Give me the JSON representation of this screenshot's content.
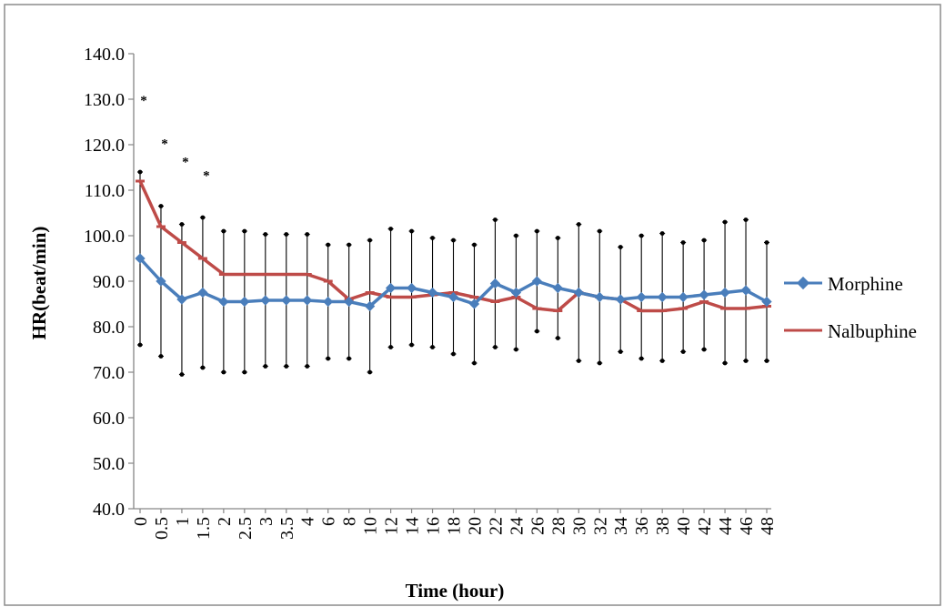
{
  "chart_data": {
    "type": "line",
    "title": "",
    "xlabel": "Time (hour)",
    "ylabel": "HR(beat/min)",
    "ylim": [
      40.0,
      140.0
    ],
    "ytick_step": 10.0,
    "ytick_labels": [
      "40.0",
      "50.0",
      "60.0",
      "70.0",
      "80.0",
      "90.0",
      "100.0",
      "110.0",
      "120.0",
      "130.0",
      "140.0"
    ],
    "categories": [
      "0",
      "0.5",
      "1",
      "1.5",
      "2",
      "2.5",
      "3",
      "3.5",
      "4",
      "6",
      "8",
      "10",
      "12",
      "14",
      "16",
      "18",
      "20",
      "22",
      "24",
      "26",
      "28",
      "30",
      "32",
      "34",
      "36",
      "38",
      "40",
      "42",
      "44",
      "46",
      "48"
    ],
    "grid": false,
    "legend_position": "right",
    "series": [
      {
        "name": "Morphine",
        "color": "#4a7ebb",
        "marker": "diamond",
        "values": [
          95.0,
          90.0,
          86.0,
          87.5,
          85.5,
          85.5,
          85.8,
          85.8,
          85.8,
          85.5,
          85.5,
          84.5,
          88.5,
          88.5,
          87.5,
          86.5,
          85.0,
          89.5,
          87.5,
          90.0,
          88.5,
          87.5,
          86.5,
          86.0,
          86.5,
          86.5,
          86.5,
          87.0,
          87.5,
          88.0,
          85.5
        ],
        "error": [
          19.0,
          16.5,
          16.5,
          16.5,
          15.5,
          15.5,
          14.5,
          14.5,
          14.5,
          12.5,
          12.5,
          14.5,
          13.0,
          12.5,
          12.0,
          12.5,
          13.0,
          14.0,
          12.5,
          11.0,
          11.0,
          15.0,
          14.5,
          11.5,
          13.5,
          14.0,
          12.0,
          12.0,
          15.5,
          15.5,
          13.0
        ]
      },
      {
        "name": "Nalbuphine",
        "color": "#be4b48",
        "marker": "dash",
        "values": [
          112.0,
          102.0,
          98.5,
          95.0,
          91.5,
          91.5,
          91.5,
          91.5,
          91.5,
          90.0,
          86.0,
          87.5,
          86.5,
          86.5,
          87.0,
          87.5,
          86.5,
          85.5,
          86.5,
          84.0,
          83.5,
          87.5,
          86.5,
          86.0,
          83.5,
          83.5,
          84.0,
          85.5,
          84.0,
          84.0,
          84.5
        ]
      }
    ],
    "annotations": [
      {
        "text": "*",
        "x": "0",
        "y": 130.0
      },
      {
        "text": "*",
        "x": "0.5",
        "y": 120.5
      },
      {
        "text": "*",
        "x": "1",
        "y": 116.5
      },
      {
        "text": "*",
        "x": "1.5",
        "y": 113.5
      }
    ]
  }
}
